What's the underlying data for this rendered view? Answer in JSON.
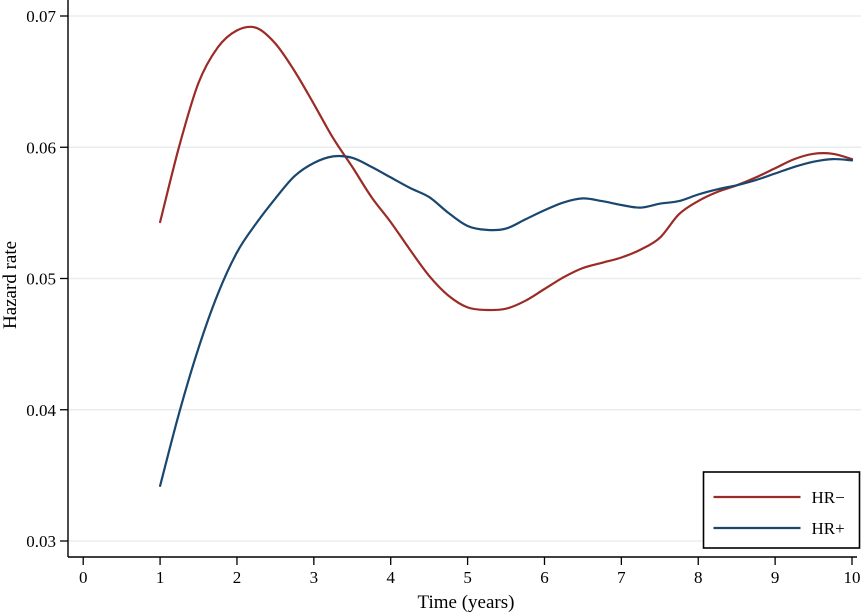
{
  "figure": {
    "background": "#ffffff",
    "axis_color": "#000000",
    "text_color": "#000000"
  },
  "chart_data": {
    "type": "line",
    "title": "",
    "xlabel": "Time (years)",
    "ylabel": "Hazard rate",
    "xlim": [
      -0.2,
      10.1
    ],
    "ylim": [
      0.0288,
      0.0712
    ],
    "xticks": [
      0,
      1,
      2,
      3,
      4,
      5,
      6,
      7,
      8,
      9,
      10
    ],
    "xtick_labels": [
      "0",
      "1",
      "2",
      "3",
      "4",
      "5",
      "6",
      "7",
      "8",
      "9",
      "10"
    ],
    "yticks": [
      0.03,
      0.04,
      0.05,
      0.06,
      0.07
    ],
    "ytick_labels": [
      "0.03",
      "0.04",
      "0.05",
      "0.06",
      "0.07"
    ],
    "grid": "horizontal",
    "grid_color": "#e8eeee",
    "x": [
      1.0,
      1.25,
      1.5,
      1.75,
      2.0,
      2.25,
      2.5,
      2.75,
      3.0,
      3.25,
      3.5,
      3.75,
      4.0,
      4.25,
      4.5,
      4.75,
      5.0,
      5.25,
      5.5,
      5.75,
      6.0,
      6.25,
      6.5,
      6.75,
      7.0,
      7.25,
      7.5,
      7.75,
      8.0,
      8.25,
      8.5,
      8.75,
      9.0,
      9.25,
      9.5,
      9.75,
      10.0
    ],
    "series": [
      {
        "name": "HR−",
        "color": "#9b2b26",
        "values": [
          0.0543,
          0.0601,
          0.0649,
          0.0676,
          0.0689,
          0.0691,
          0.0679,
          0.0658,
          0.0633,
          0.0607,
          0.0585,
          0.0562,
          0.0543,
          0.0522,
          0.0502,
          0.0487,
          0.0478,
          0.0476,
          0.0477,
          0.0483,
          0.0492,
          0.0501,
          0.0508,
          0.0512,
          0.0516,
          0.0522,
          0.0531,
          0.0549,
          0.0559,
          0.0566,
          0.0571,
          0.0577,
          0.0584,
          0.0591,
          0.0595,
          0.0595,
          0.0591
        ]
      },
      {
        "name": "HR+",
        "color": "#1a476f",
        "values": [
          0.0342,
          0.0398,
          0.0447,
          0.0488,
          0.052,
          0.0542,
          0.0561,
          0.0578,
          0.0588,
          0.0593,
          0.0592,
          0.0585,
          0.0577,
          0.0569,
          0.0562,
          0.055,
          0.054,
          0.0537,
          0.0538,
          0.0545,
          0.0552,
          0.0558,
          0.0561,
          0.0559,
          0.0556,
          0.0554,
          0.0557,
          0.0559,
          0.0564,
          0.0568,
          0.0571,
          0.0575,
          0.058,
          0.0585,
          0.0589,
          0.0591,
          0.059
        ]
      }
    ],
    "legend": {
      "position": "bottom-right",
      "border_color": "#000000",
      "entries": [
        "HR−",
        "HR+"
      ]
    }
  }
}
